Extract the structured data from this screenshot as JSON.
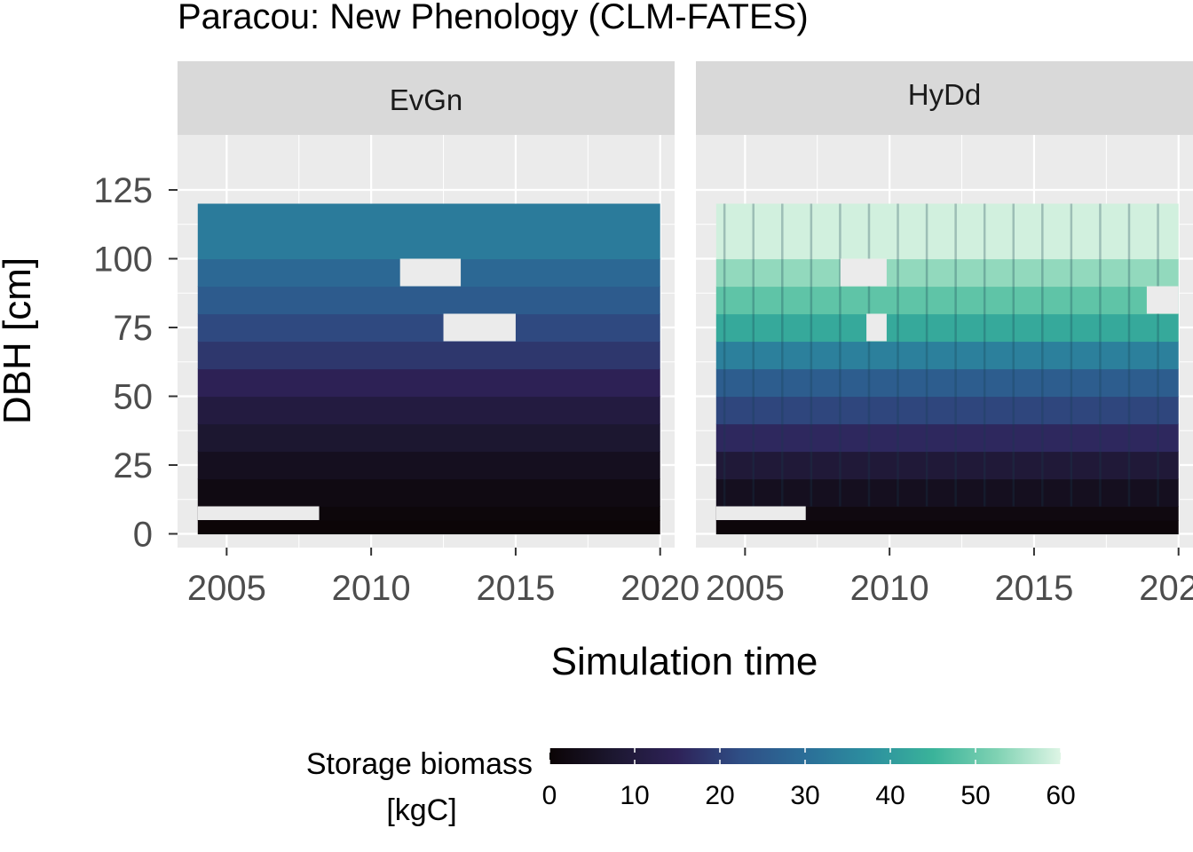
{
  "chart_data": {
    "type": "heatmap",
    "title": "Paracou: New Phenology (CLM-FATES)",
    "xlabel": "Simulation time",
    "ylabel": "DBH [cm]",
    "xlim": [
      2003.3,
      2020.5
    ],
    "ylim": [
      -5,
      145
    ],
    "x_ticks": [
      "2005",
      "2010",
      "2015",
      "2020"
    ],
    "y_ticks": [
      "0",
      "25",
      "50",
      "75",
      "100",
      "125"
    ],
    "x_range": [
      2004,
      2020
    ],
    "dbh_bins": [
      [
        0,
        5
      ],
      [
        5,
        10
      ],
      [
        10,
        20
      ],
      [
        20,
        30
      ],
      [
        30,
        40
      ],
      [
        40,
        50
      ],
      [
        50,
        60
      ],
      [
        60,
        70
      ],
      [
        70,
        80
      ],
      [
        80,
        90
      ],
      [
        90,
        100
      ],
      [
        100,
        120
      ]
    ],
    "legend": {
      "title": "Storage biomass",
      "title_unit": "[kgC]",
      "position": "bottom",
      "ticks": [
        "0",
        "10",
        "20",
        "30",
        "40",
        "50",
        "60"
      ],
      "range": [
        0,
        60
      ],
      "colors": [
        "#0b0405",
        "#1c1730",
        "#2e2258",
        "#2f4f86",
        "#2b6e98",
        "#2c8f9f",
        "#3ab39a",
        "#7fd2b3",
        "#def5e5"
      ]
    },
    "panels": [
      {
        "name": "EvGn",
        "bin_values": [
          0.3,
          1.0,
          2.2,
          4.5,
          7.5,
          10.5,
          14.5,
          18.5,
          21.5,
          25.5,
          28.5,
          33.0
        ],
        "missing": [
          {
            "dbh_bin": 1,
            "x_from": 2004.0,
            "x_to": 2008.2
          },
          {
            "dbh_bin": 10,
            "x_from": 2011.0,
            "x_to": 2013.1
          },
          {
            "dbh_bin": 8,
            "x_from": 2012.5,
            "x_to": 2015.0
          }
        ]
      },
      {
        "name": "HyDd",
        "bin_values": [
          0.8,
          2.0,
          4.5,
          9.0,
          16.0,
          21.0,
          26.0,
          34.0,
          43.0,
          49.0,
          54.0,
          59.0
        ],
        "missing": [
          {
            "dbh_bin": 1,
            "x_from": 2004.0,
            "x_to": 2007.1
          },
          {
            "dbh_bin": 10,
            "x_from": 2008.3,
            "x_to": 2009.9
          },
          {
            "dbh_bin": 8,
            "x_from": 2009.2,
            "x_to": 2009.9
          },
          {
            "dbh_bin": 9,
            "x_from": 2018.9,
            "x_to": 2020.0
          }
        ]
      }
    ]
  }
}
